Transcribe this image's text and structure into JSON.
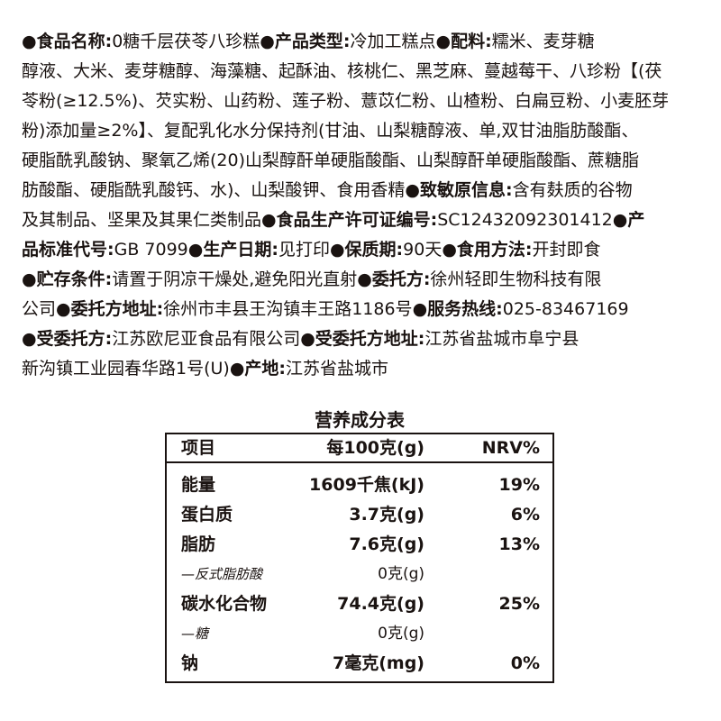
{
  "label_lines": [
    [
      {
        "t": "●食品名称:",
        "b": true
      },
      {
        "t": "0糖千层茯苓八珍糕",
        "b": false
      },
      {
        "t": "●产品类型:",
        "b": true
      },
      {
        "t": "冷加工糕点",
        "b": false
      },
      {
        "t": "●配料:",
        "b": true
      },
      {
        "t": "糯米、麦芽糖",
        "b": false
      }
    ],
    [
      {
        "t": "醇液、大米、麦芽糖醇、海藻糖、起酥油、核桃仁、黑芝麻、蔓越莓干、八珍粉【(茯",
        "b": false
      }
    ],
    [
      {
        "t": "苓粉(≥12.5%)、芡实粉、山药粉、莲子粉、薏苡仁粉、山楂粉、白扁豆粉、小麦胚芽",
        "b": false
      }
    ],
    [
      {
        "t": "粉)添加量≥2%】、复配乳化水分保持剂(甘油、山梨糖醇液、单,双甘油脂肪酸酯、",
        "b": false
      }
    ],
    [
      {
        "t": "硬脂酰乳酸钠、聚氧乙烯(20)山梨醇酐单硬脂酸酯、山梨醇酐单硬脂酸酯、蔗糖脂",
        "b": false
      }
    ],
    [
      {
        "t": "肪酸酯、硬脂酰乳酸钙、水)、山梨酸钾、食用香精",
        "b": false
      },
      {
        "t": "●致敏原信息:",
        "b": true
      },
      {
        "t": "含有麸质的谷物",
        "b": false
      }
    ],
    [
      {
        "t": "及其制品、坚果及其果仁类制品",
        "b": false
      },
      {
        "t": "●食品生产许可证编号:",
        "b": true
      },
      {
        "t": "SC12432092301412",
        "b": false
      },
      {
        "t": "●产",
        "b": true
      }
    ],
    [
      {
        "t": "品标准代号:",
        "b": true
      },
      {
        "t": "GB 7099",
        "b": false
      },
      {
        "t": "●生产日期:",
        "b": true
      },
      {
        "t": "见打印",
        "b": false
      },
      {
        "t": "●保质期:",
        "b": true
      },
      {
        "t": "90天",
        "b": false
      },
      {
        "t": "●食用方法:",
        "b": true
      },
      {
        "t": "开封即食",
        "b": false
      }
    ],
    [
      {
        "t": "●贮存条件:",
        "b": true
      },
      {
        "t": "请置于阴凉干燥处,避免阳光直射",
        "b": false
      },
      {
        "t": "●委托方:",
        "b": true
      },
      {
        "t": "徐州轻即生物科技有限",
        "b": false
      }
    ],
    [
      {
        "t": "公司",
        "b": false
      },
      {
        "t": "●委托方地址:",
        "b": true
      },
      {
        "t": "徐州市丰县王沟镇丰王路1186号",
        "b": false
      },
      {
        "t": "●服务热线:",
        "b": true
      },
      {
        "t": "025-83467169",
        "b": false
      }
    ],
    [
      {
        "t": "●受委托方:",
        "b": true
      },
      {
        "t": "江苏欧尼亚食品有限公司",
        "b": false
      },
      {
        "t": "●受委托方地址:",
        "b": true
      },
      {
        "t": "江苏省盐城市阜宁县",
        "b": false
      }
    ],
    [
      {
        "t": "新沟镇工业园春华路1号(U)",
        "b": false
      },
      {
        "t": "●产地:",
        "b": true
      },
      {
        "t": "江苏省盐城市",
        "b": false
      }
    ]
  ],
  "nutrition": {
    "title": "营养成分表",
    "headers": [
      "项目",
      "每100克(g)",
      "NRV%"
    ],
    "rows": [
      {
        "item": "能量",
        "amount": "1609千焦(kJ)",
        "nrv": "19%",
        "sub": false
      },
      {
        "item": "蛋白质",
        "amount": "3.7克(g)",
        "nrv": "6%",
        "sub": false
      },
      {
        "item": "脂肪",
        "amount": "7.6克(g)",
        "nrv": "13%",
        "sub": false
      },
      {
        "item": "—反式脂肪酸",
        "amount": "0克(g)",
        "nrv": "",
        "sub": true
      },
      {
        "item": "碳水化合物",
        "amount": "74.4克(g)",
        "nrv": "25%",
        "sub": false
      },
      {
        "item": "—糖",
        "amount": "0克(g)",
        "nrv": "",
        "sub": true
      },
      {
        "item": "钠",
        "amount": "7毫克(mg)",
        "nrv": "0%",
        "sub": false
      }
    ]
  }
}
